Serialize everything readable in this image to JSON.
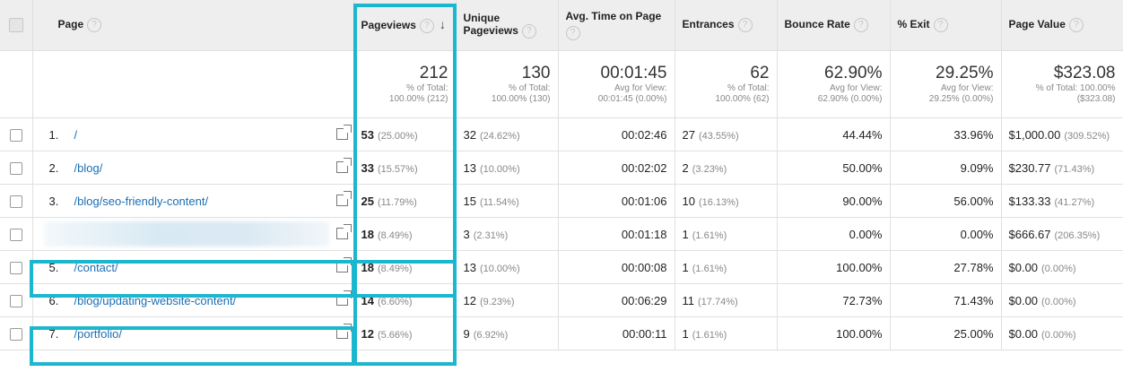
{
  "headers": {
    "page": "Page",
    "pageviews": "Pageviews",
    "unique_pageviews": "Unique Pageviews",
    "avg_time": "Avg. Time on Page",
    "entrances": "Entrances",
    "bounce_rate": "Bounce Rate",
    "exit": "% Exit",
    "page_value": "Page Value",
    "help_glyph": "?",
    "sort_glyph": "↓"
  },
  "totals": {
    "pageviews": {
      "value": "212",
      "sub1": "% of Total:",
      "sub2": "100.00% (212)"
    },
    "unique_pageviews": {
      "value": "130",
      "sub1": "% of Total:",
      "sub2": "100.00% (130)"
    },
    "avg_time": {
      "value": "00:01:45",
      "sub1": "Avg for View:",
      "sub2": "00:01:45 (0.00%)"
    },
    "entrances": {
      "value": "62",
      "sub1": "% of Total:",
      "sub2": "100.00% (62)"
    },
    "bounce_rate": {
      "value": "62.90%",
      "sub1": "Avg for View:",
      "sub2": "62.90% (0.00%)"
    },
    "exit": {
      "value": "29.25%",
      "sub1": "Avg for View:",
      "sub2": "29.25% (0.00%)"
    },
    "page_value": {
      "value": "$323.08",
      "sub1": "% of Total: 100.00%",
      "sub2": "($323.08)"
    }
  },
  "rows": [
    {
      "index": "1.",
      "page": "/",
      "pageviews": "53",
      "pageviews_pct": "(25.00%)",
      "unique": "32",
      "unique_pct": "(24.62%)",
      "avg_time": "00:02:46",
      "entrances": "27",
      "entrances_pct": "(43.55%)",
      "bounce": "44.44%",
      "exit": "33.96%",
      "value": "$1,000.00",
      "value_pct": "(309.52%)"
    },
    {
      "index": "2.",
      "page": "/blog/",
      "pageviews": "33",
      "pageviews_pct": "(15.57%)",
      "unique": "13",
      "unique_pct": "(10.00%)",
      "avg_time": "00:02:02",
      "entrances": "2",
      "entrances_pct": "(3.23%)",
      "bounce": "50.00%",
      "exit": "9.09%",
      "value": "$230.77",
      "value_pct": "(71.43%)"
    },
    {
      "index": "3.",
      "page": "/blog/seo-friendly-content/",
      "pageviews": "25",
      "pageviews_pct": "(11.79%)",
      "unique": "15",
      "unique_pct": "(11.54%)",
      "avg_time": "00:01:06",
      "entrances": "10",
      "entrances_pct": "(16.13%)",
      "bounce": "90.00%",
      "exit": "56.00%",
      "value": "$133.33",
      "value_pct": "(41.27%)"
    },
    {
      "index": "",
      "page": "",
      "pageviews": "18",
      "pageviews_pct": "(8.49%)",
      "unique": "3",
      "unique_pct": "(2.31%)",
      "avg_time": "00:01:18",
      "entrances": "1",
      "entrances_pct": "(1.61%)",
      "bounce": "0.00%",
      "exit": "0.00%",
      "value": "$666.67",
      "value_pct": "(206.35%)"
    },
    {
      "index": "5.",
      "page": "/contact/",
      "pageviews": "18",
      "pageviews_pct": "(8.49%)",
      "unique": "13",
      "unique_pct": "(10.00%)",
      "avg_time": "00:00:08",
      "entrances": "1",
      "entrances_pct": "(1.61%)",
      "bounce": "100.00%",
      "exit": "27.78%",
      "value": "$0.00",
      "value_pct": "(0.00%)"
    },
    {
      "index": "6.",
      "page": "/blog/updating-website-content/",
      "pageviews": "14",
      "pageviews_pct": "(6.60%)",
      "unique": "12",
      "unique_pct": "(9.23%)",
      "avg_time": "00:06:29",
      "entrances": "11",
      "entrances_pct": "(17.74%)",
      "bounce": "72.73%",
      "exit": "71.43%",
      "value": "$0.00",
      "value_pct": "(0.00%)"
    },
    {
      "index": "7.",
      "page": "/portfolio/",
      "pageviews": "12",
      "pageviews_pct": "(5.66%)",
      "unique": "9",
      "unique_pct": "(6.92%)",
      "avg_time": "00:00:11",
      "entrances": "1",
      "entrances_pct": "(1.61%)",
      "bounce": "100.00%",
      "exit": "25.00%",
      "value": "$0.00",
      "value_pct": "(0.00%)"
    }
  ],
  "colors": {
    "highlight": "#1bb7cf",
    "link": "#1a6fb5",
    "header_bg": "#eeeeee"
  }
}
